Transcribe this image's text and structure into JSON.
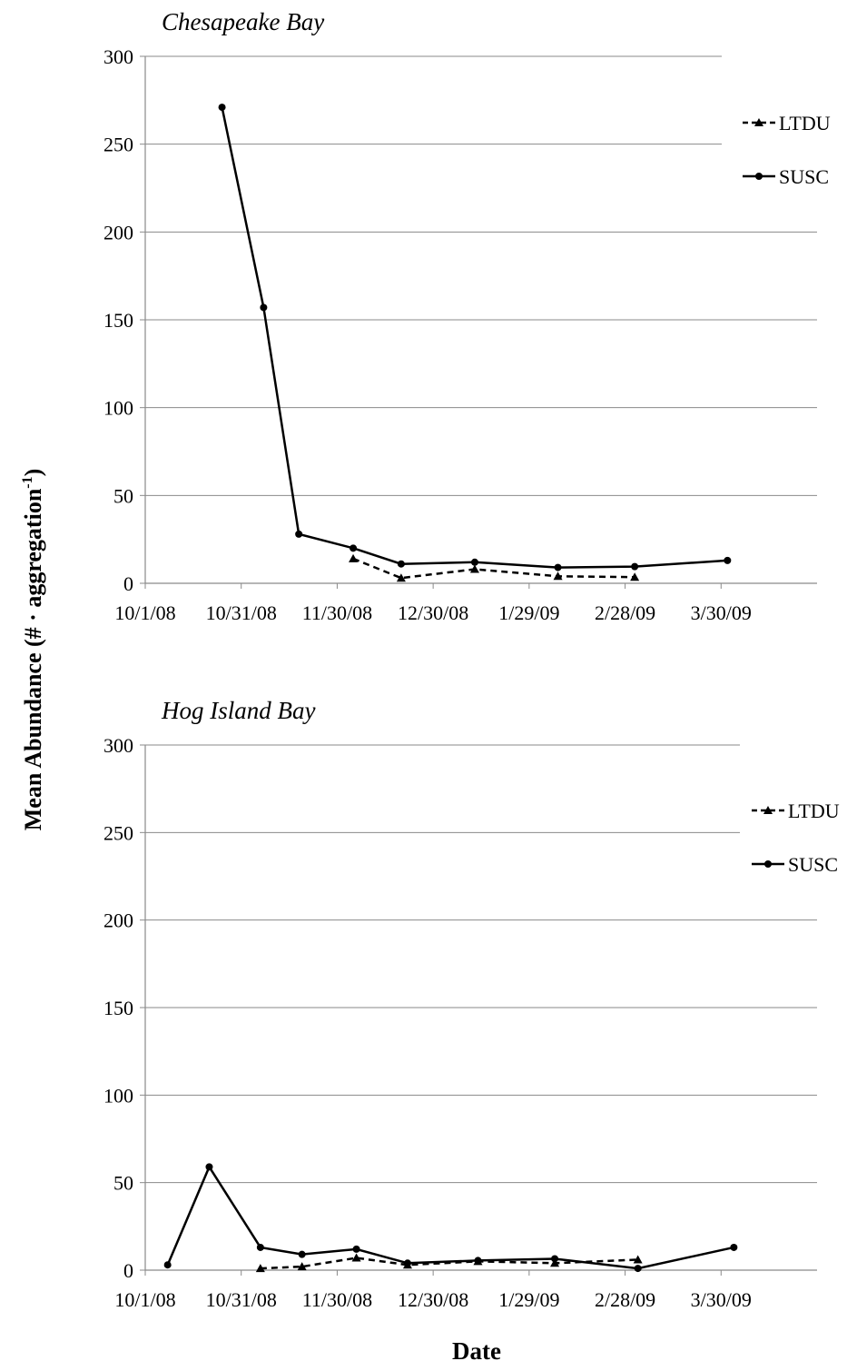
{
  "chart_data": [
    {
      "type": "line",
      "title": "Chesapeake Bay",
      "ylim": [
        0,
        300
      ],
      "yticks": [
        "0",
        "50",
        "100",
        "150",
        "200",
        "250",
        "300"
      ],
      "xticks": [
        "10/1/08",
        "10/31/08",
        "11/30/08",
        "12/30/08",
        "1/29/09",
        "2/28/09",
        "3/30/09"
      ],
      "grid": true,
      "legend_position": "top-right",
      "series": [
        {
          "name": "LTDU",
          "style": "dashed",
          "marker": "triangle",
          "points": [
            {
              "x": "2008-12-05",
              "y": 14
            },
            {
              "x": "2008-12-20",
              "y": 3
            },
            {
              "x": "2009-01-12",
              "y": 8
            },
            {
              "x": "2009-02-07",
              "y": 4
            },
            {
              "x": "2009-03-03",
              "y": 3.5
            }
          ]
        },
        {
          "name": "SUSC",
          "style": "solid",
          "marker": "circle",
          "points": [
            {
              "x": "2008-10-25",
              "y": 271
            },
            {
              "x": "2008-11-07",
              "y": 157
            },
            {
              "x": "2008-11-18",
              "y": 28
            },
            {
              "x": "2008-12-05",
              "y": 20
            },
            {
              "x": "2008-12-20",
              "y": 11
            },
            {
              "x": "2009-01-12",
              "y": 12
            },
            {
              "x": "2009-02-07",
              "y": 9
            },
            {
              "x": "2009-03-03",
              "y": 9.5
            },
            {
              "x": "2009-04-01",
              "y": 13
            }
          ]
        }
      ]
    },
    {
      "type": "line",
      "title": "Hog Island Bay",
      "ylim": [
        0,
        300
      ],
      "yticks": [
        "0",
        "50",
        "100",
        "150",
        "200",
        "250",
        "300"
      ],
      "xticks": [
        "10/1/08",
        "10/31/08",
        "11/30/08",
        "12/30/08",
        "1/29/09",
        "2/28/09",
        "3/30/09"
      ],
      "grid": true,
      "legend_position": "top-right",
      "series": [
        {
          "name": "LTDU",
          "style": "dashed",
          "marker": "triangle",
          "points": [
            {
              "x": "2008-11-06",
              "y": 1
            },
            {
              "x": "2008-11-19",
              "y": 2
            },
            {
              "x": "2008-12-06",
              "y": 7
            },
            {
              "x": "2008-12-22",
              "y": 3
            },
            {
              "x": "2009-01-13",
              "y": 5
            },
            {
              "x": "2009-02-06",
              "y": 4
            },
            {
              "x": "2009-03-04",
              "y": 6
            }
          ]
        },
        {
          "name": "SUSC",
          "style": "solid",
          "marker": "circle",
          "points": [
            {
              "x": "2008-10-08",
              "y": 3
            },
            {
              "x": "2008-10-21",
              "y": 59
            },
            {
              "x": "2008-11-06",
              "y": 13
            },
            {
              "x": "2008-11-19",
              "y": 9
            },
            {
              "x": "2008-12-06",
              "y": 12
            },
            {
              "x": "2008-12-22",
              "y": 4
            },
            {
              "x": "2009-01-13",
              "y": 5.5
            },
            {
              "x": "2009-02-06",
              "y": 6.5
            },
            {
              "x": "2009-03-04",
              "y": 1
            },
            {
              "x": "2009-04-03",
              "y": 13
            }
          ]
        }
      ]
    }
  ],
  "ylabel": {
    "main": "Mean Abundance (# · aggregation",
    "sup": "-1",
    "close": ")"
  },
  "xlabel": "Date"
}
